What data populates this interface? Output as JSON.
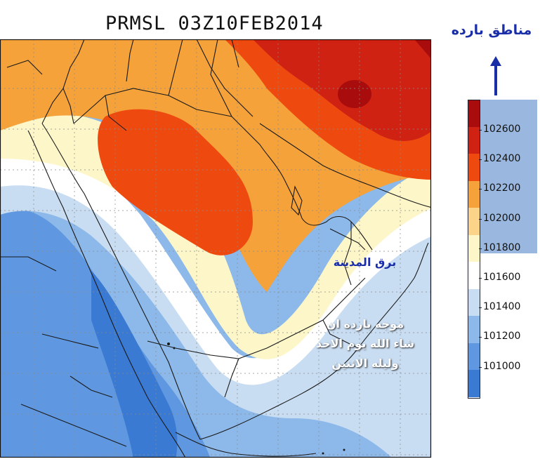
{
  "title": "PRMSL 03Z10FEB2014",
  "legend_note": "مناطق بارده",
  "colorbar": {
    "ticks": [
      "102600",
      "102400",
      "102200",
      "102000",
      "101800",
      "101600",
      "101400",
      "101200",
      "101000"
    ],
    "colors": [
      "#a80c0c",
      "#cf2212",
      "#ee4a10",
      "#f5a23a",
      "#fbd48a",
      "#fdf6c8",
      "#ffffff",
      "#c9ddf2",
      "#8db9ea",
      "#5f98e0",
      "#3a7ad3"
    ]
  },
  "annotations": {
    "lightning": "برق المدينة",
    "cold_wave_line1": "موجه بارده ان",
    "cold_wave_line2": "شاء الله يوم الاحد",
    "cold_wave_line3": "وليله الاثنين"
  },
  "colors": {
    "annotation_blue": "#1a2ea8",
    "annotation_white": "#ffffff",
    "border_line": "#1a1a1a"
  }
}
